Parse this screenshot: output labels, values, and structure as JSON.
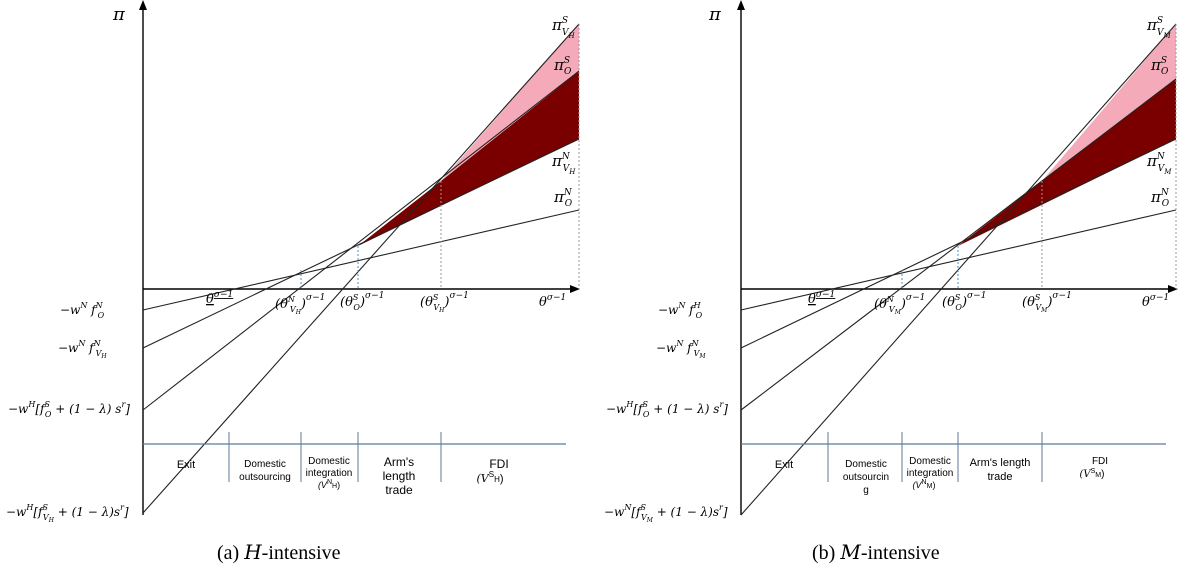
{
  "panels": [
    {
      "id": "a",
      "caption_prefix": "(a) ",
      "caption_var": "H",
      "caption_suffix": "-intensive",
      "y_axis_label": "π",
      "x_axis_label": "θ^(σ−1)",
      "curve_labels": {
        "vs": "π^S_{V_H}",
        "os": "π^S_O",
        "vn": "π^N_{V_H}",
        "on": "π^N_O"
      },
      "threshold_labels": [
        "θ^(σ−1)",
        "(θ^N_{V_H})^(σ−1)",
        "(θ^S_O)^(σ−1)",
        "(θ^S_{V_H})^(σ−1)"
      ],
      "intercept_labels": [
        "−w^N f^N_O",
        "−w^N f^N_{V_H}",
        "−w^N[f^S_O + (1 − λ) s^r]",
        "−w^N[f^S_{V_H} + (1 − λ)s^r]"
      ],
      "regions": [
        {
          "lines": [
            "Exit"
          ]
        },
        {
          "lines": [
            "Domestic",
            "outsourcing"
          ]
        },
        {
          "lines": [
            "Domestic",
            "integration",
            "(V^N_H)"
          ]
        },
        {
          "lines": [
            "Arm's",
            "length",
            "trade"
          ]
        },
        {
          "lines": [
            "FDI",
            "(V^S_H)"
          ]
        }
      ]
    },
    {
      "id": "b",
      "caption_prefix": "(b) ",
      "caption_var": "M",
      "caption_suffix": "-intensive",
      "y_axis_label": "π",
      "x_axis_label": "θ^(σ−1)",
      "curve_labels": {
        "vs": "π^S_{V_M}",
        "os": "π^S_O",
        "vn": "π^N_{V_M}",
        "on": "π^N_O"
      },
      "threshold_labels": [
        "θ^(σ−1)",
        "(θ^N_{V_M})^(σ−1)",
        "(θ^S_O)^(σ−1)",
        "(θ^S_{V_M})^(σ−1)"
      ],
      "intercept_labels": [
        "−w^N f^N_O",
        "−w^N f^N_{V_M}",
        "−w^N[f^S_O + (1 − λ) s^r]",
        "−w^N[f^S_{V_M} + (1 − λ)s^r]"
      ],
      "regions": [
        {
          "lines": [
            "Exit"
          ]
        },
        {
          "lines": [
            "Domestic",
            "outsourcin",
            "g"
          ]
        },
        {
          "lines": [
            "Domestic",
            "integration",
            "(V^N_M)"
          ]
        },
        {
          "lines": [
            "Arm's length",
            "trade"
          ]
        },
        {
          "lines": [
            "FDI",
            "(V^S_M)"
          ]
        }
      ]
    }
  ],
  "colors": {
    "axis": "#000000",
    "curve": "#222222",
    "dark_region": "#7a0000",
    "pink_region": "#f4aab8",
    "dashed_left": "#4a90c8",
    "dashed_right": "#999999",
    "region_line": "#5c7a99"
  }
}
